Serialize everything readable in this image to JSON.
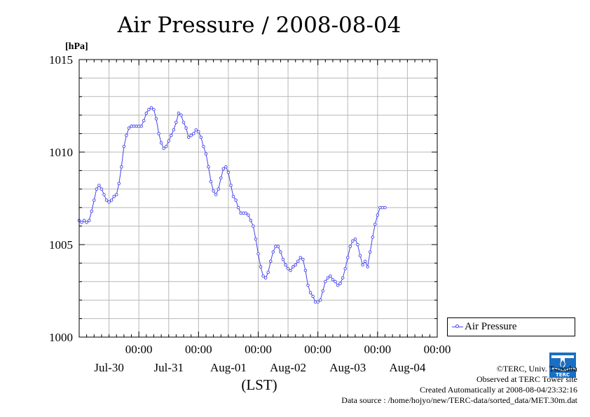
{
  "chart_data": {
    "type": "line",
    "title": "Air Pressure / 2008-08-04",
    "ylabel": "[hPa]",
    "xlabel": "(LST)",
    "ylim": [
      1000,
      1015
    ],
    "yticks": [
      1000,
      1005,
      1010,
      1015
    ],
    "xlim_hours": [
      0,
      144
    ],
    "x_ticks": [
      {
        "time": "00:00",
        "date": "Jul-30"
      },
      {
        "time": "00:00",
        "date": "Jul-31"
      },
      {
        "time": "00:00",
        "date": "Aug-01"
      },
      {
        "time": "00:00",
        "date": "Aug-02"
      },
      {
        "time": "00:00",
        "date": "Aug-03"
      },
      {
        "time": "00:00",
        "date": "Aug-04"
      }
    ],
    "grid": true,
    "legend_position": "right-bottom",
    "series": [
      {
        "name": "Air Pressure",
        "color": "#4444ee",
        "points": [
          [
            0,
            1006.3
          ],
          [
            1,
            1006.2
          ],
          [
            2,
            1006.3
          ],
          [
            3,
            1006.2
          ],
          [
            4,
            1006.3
          ],
          [
            5,
            1006.8
          ],
          [
            6,
            1007.4
          ],
          [
            7,
            1008.0
          ],
          [
            8,
            1008.2
          ],
          [
            9,
            1008.0
          ],
          [
            10,
            1007.7
          ],
          [
            11,
            1007.4
          ],
          [
            12,
            1007.3
          ],
          [
            13,
            1007.4
          ],
          [
            14,
            1007.6
          ],
          [
            15,
            1007.7
          ],
          [
            16,
            1008.3
          ],
          [
            17,
            1009.2
          ],
          [
            18,
            1010.3
          ],
          [
            19,
            1010.9
          ],
          [
            20,
            1011.3
          ],
          [
            21,
            1011.4
          ],
          [
            22,
            1011.4
          ],
          [
            23,
            1011.4
          ],
          [
            24,
            1011.4
          ],
          [
            25,
            1011.4
          ],
          [
            26,
            1011.7
          ],
          [
            27,
            1012.1
          ],
          [
            28,
            1012.3
          ],
          [
            29,
            1012.4
          ],
          [
            30,
            1012.3
          ],
          [
            31,
            1011.8
          ],
          [
            32,
            1011.0
          ],
          [
            33,
            1010.5
          ],
          [
            34,
            1010.2
          ],
          [
            35,
            1010.3
          ],
          [
            36,
            1010.6
          ],
          [
            37,
            1010.9
          ],
          [
            38,
            1011.2
          ],
          [
            39,
            1011.6
          ],
          [
            40,
            1012.1
          ],
          [
            41,
            1012.0
          ],
          [
            42,
            1011.6
          ],
          [
            43,
            1011.3
          ],
          [
            44,
            1010.8
          ],
          [
            45,
            1010.9
          ],
          [
            46,
            1011.0
          ],
          [
            47,
            1011.2
          ],
          [
            48,
            1011.1
          ],
          [
            49,
            1010.8
          ],
          [
            50,
            1010.3
          ],
          [
            51,
            1009.9
          ],
          [
            52,
            1009.2
          ],
          [
            53,
            1008.4
          ],
          [
            54,
            1007.9
          ],
          [
            55,
            1007.7
          ],
          [
            56,
            1008.0
          ],
          [
            57,
            1008.6
          ],
          [
            58,
            1009.1
          ],
          [
            59,
            1009.2
          ],
          [
            60,
            1008.9
          ],
          [
            61,
            1008.2
          ],
          [
            62,
            1007.6
          ],
          [
            63,
            1007.4
          ],
          [
            64,
            1007.0
          ],
          [
            65,
            1006.7
          ],
          [
            66,
            1006.7
          ],
          [
            67,
            1006.7
          ],
          [
            68,
            1006.6
          ],
          [
            69,
            1006.3
          ],
          [
            70,
            1006.0
          ],
          [
            71,
            1005.3
          ],
          [
            72,
            1004.5
          ],
          [
            73,
            1003.8
          ],
          [
            74,
            1003.3
          ],
          [
            75,
            1003.2
          ],
          [
            76,
            1003.5
          ],
          [
            77,
            1004.1
          ],
          [
            78,
            1004.6
          ],
          [
            79,
            1004.9
          ],
          [
            80,
            1004.9
          ],
          [
            81,
            1004.6
          ],
          [
            82,
            1004.2
          ],
          [
            83,
            1003.9
          ],
          [
            84,
            1003.7
          ],
          [
            85,
            1003.6
          ],
          [
            86,
            1003.8
          ],
          [
            87,
            1003.9
          ],
          [
            88,
            1004.1
          ],
          [
            89,
            1004.3
          ],
          [
            90,
            1004.2
          ],
          [
            91,
            1003.6
          ],
          [
            92,
            1002.8
          ],
          [
            93,
            1002.4
          ],
          [
            94,
            1002.2
          ],
          [
            95,
            1001.9
          ],
          [
            96,
            1001.9
          ],
          [
            97,
            1002.0
          ],
          [
            98,
            1002.5
          ],
          [
            99,
            1003.0
          ],
          [
            100,
            1003.2
          ],
          [
            101,
            1003.3
          ],
          [
            102,
            1003.1
          ],
          [
            103,
            1003.0
          ],
          [
            104,
            1002.8
          ],
          [
            105,
            1002.9
          ],
          [
            106,
            1003.2
          ],
          [
            107,
            1003.7
          ],
          [
            108,
            1004.3
          ],
          [
            109,
            1004.9
          ],
          [
            110,
            1005.2
          ],
          [
            111,
            1005.3
          ],
          [
            112,
            1005.0
          ],
          [
            113,
            1004.4
          ],
          [
            114,
            1003.9
          ],
          [
            115,
            1004.1
          ],
          [
            116,
            1003.8
          ],
          [
            117,
            1004.6
          ],
          [
            118,
            1005.4
          ],
          [
            119,
            1006.1
          ],
          [
            120,
            1006.6
          ],
          [
            121,
            1007.0
          ],
          [
            122,
            1007.0
          ],
          [
            123,
            1007.0
          ]
        ]
      }
    ]
  },
  "credits": {
    "copyright": "©TERC, Univ. Tsukuba",
    "observed": "Observed at TERC Tower site",
    "created": "Created Automatically at 2008-08-04/23:32:16",
    "source": "Data source : /home/hojyo/new/TERC-data/sorted_data/MET.30m.dat"
  },
  "logo": {
    "text": "TERC",
    "color": "#1a6fc4"
  }
}
